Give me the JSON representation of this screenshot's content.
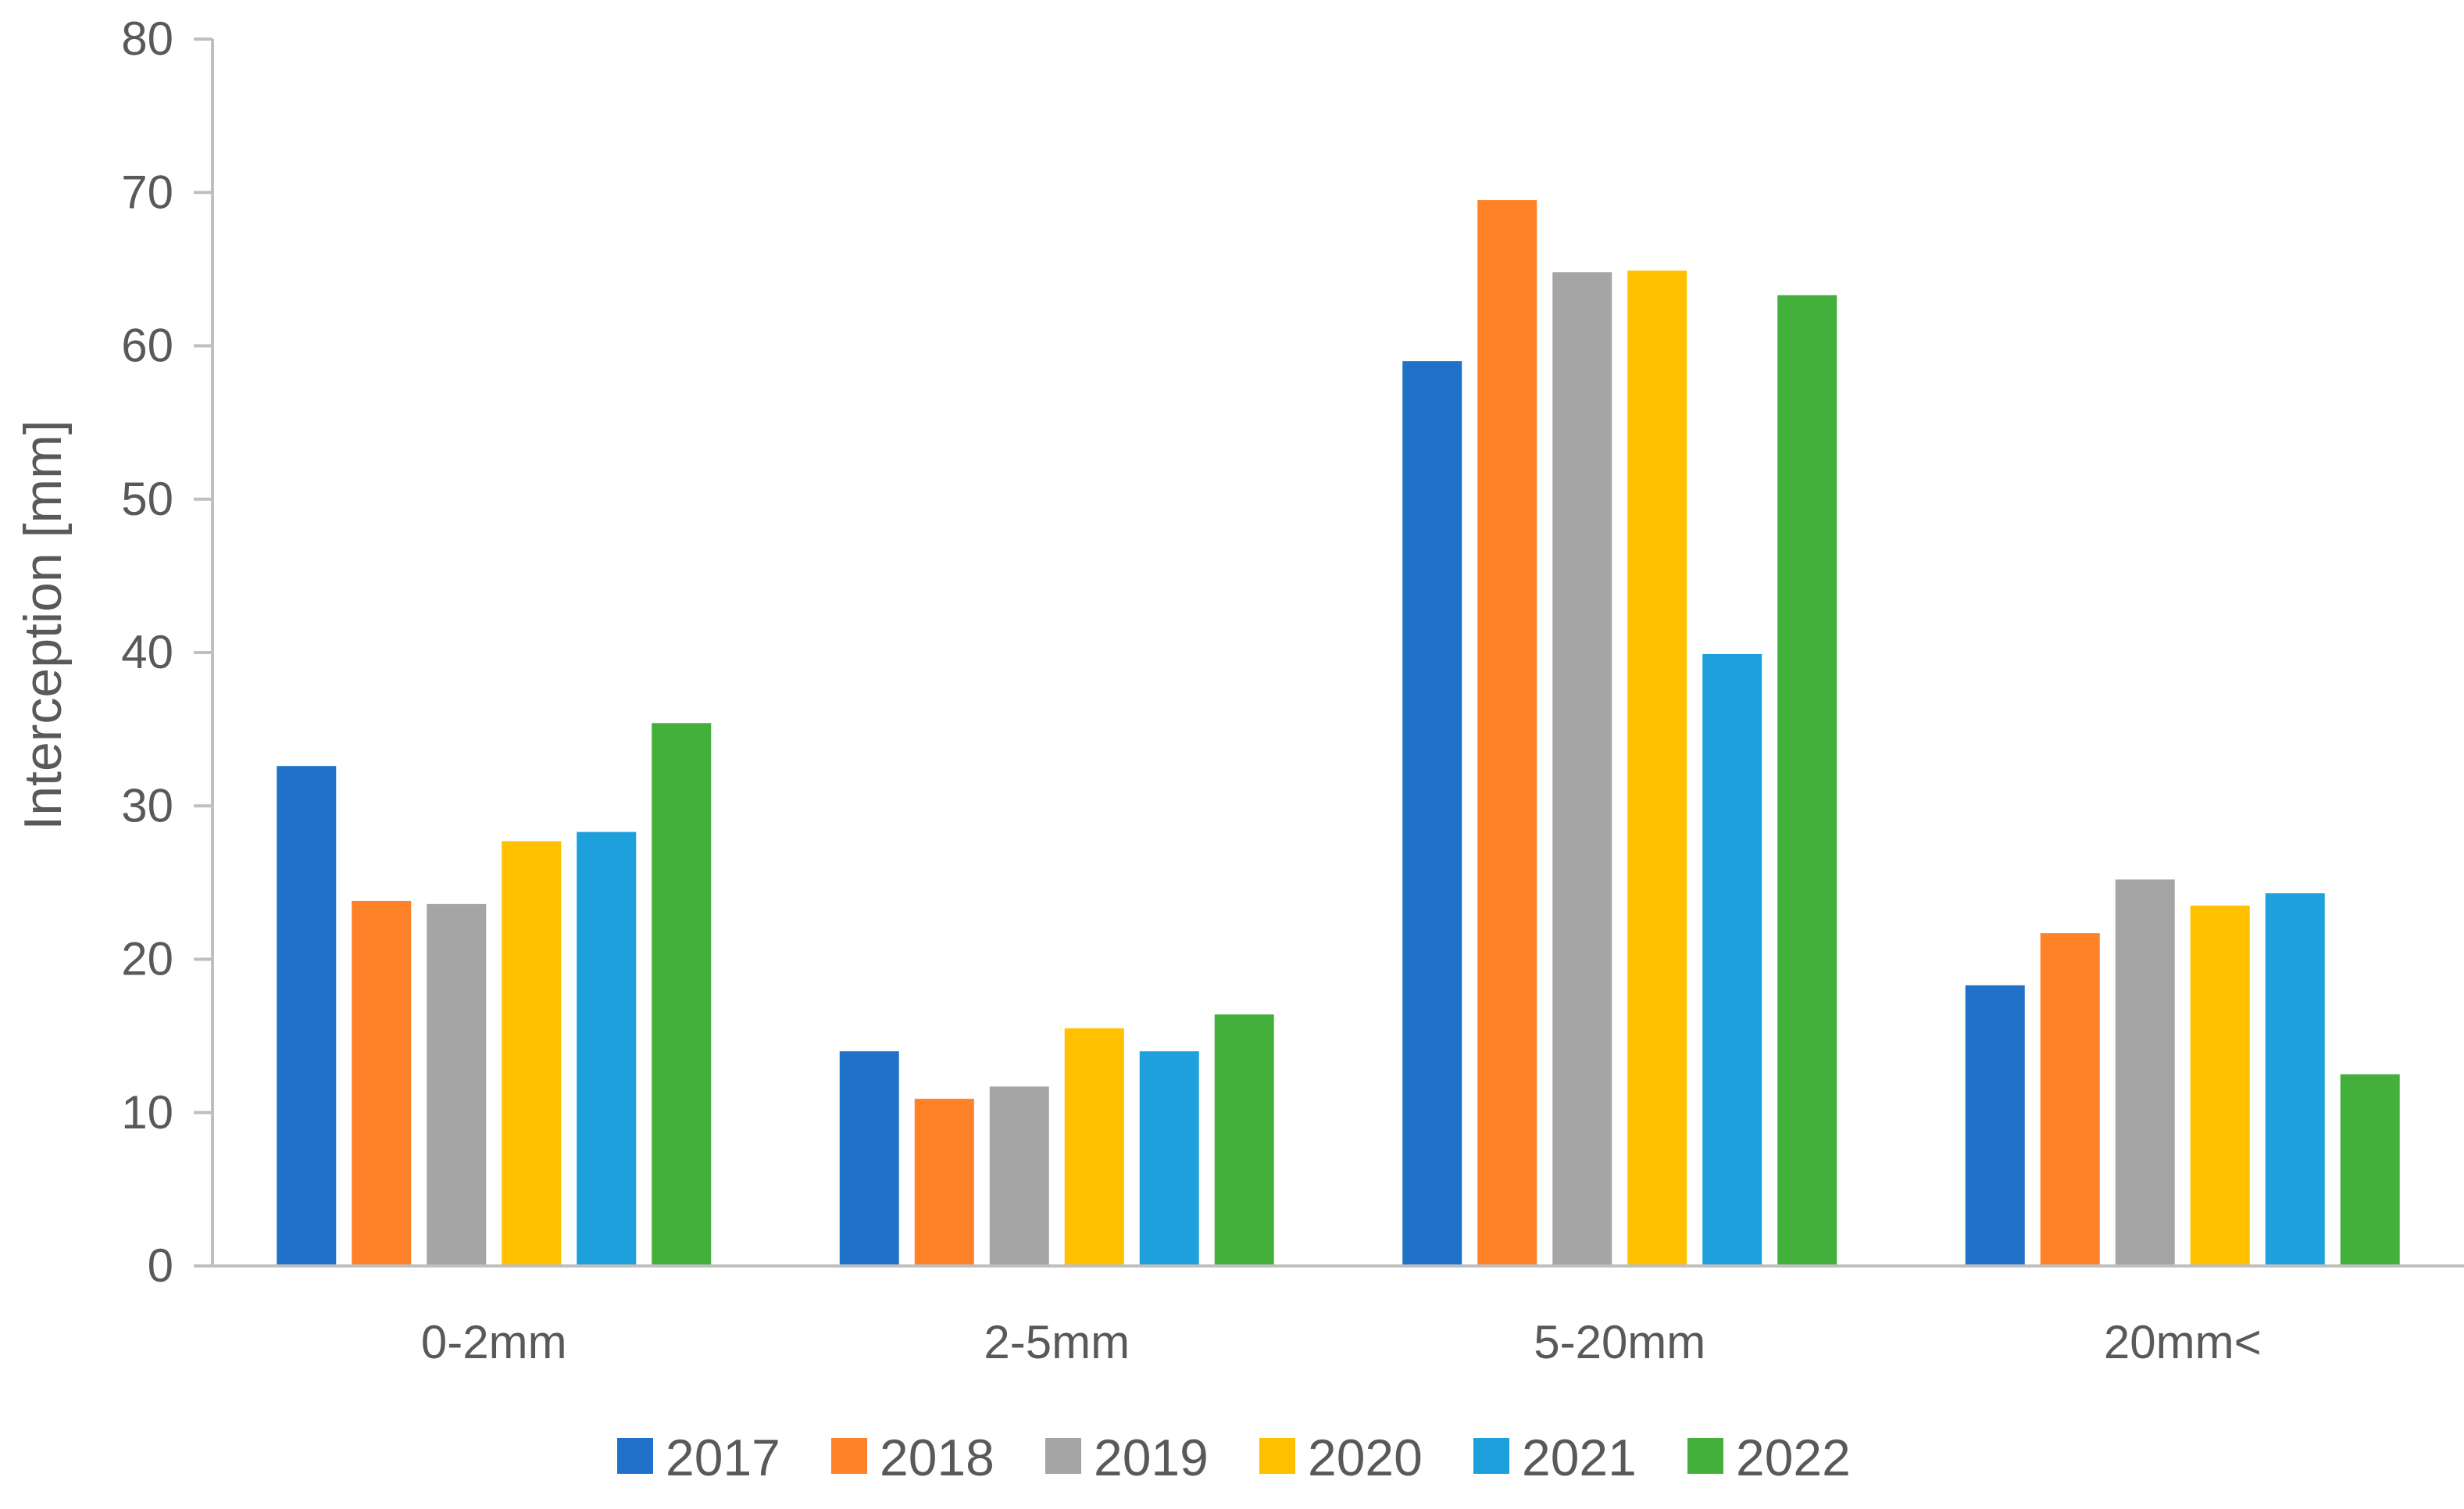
{
  "chart_data": {
    "type": "bar",
    "title": "",
    "xlabel": "",
    "ylabel": "Interception [mm]",
    "ylim": [
      0,
      80
    ],
    "yticks": [
      0,
      10,
      20,
      30,
      40,
      50,
      60,
      70,
      80
    ],
    "grid": false,
    "legend_position": "bottom",
    "categories": [
      "0-2mm",
      "2-5mm",
      "5-20mm",
      "20mm<"
    ],
    "series": [
      {
        "name": "2017",
        "color": "#1F72C8",
        "values": [
          32.6,
          14.0,
          59.0,
          18.3
        ]
      },
      {
        "name": "2018",
        "color": "#FF8128",
        "values": [
          23.8,
          10.9,
          69.5,
          21.7
        ]
      },
      {
        "name": "2019",
        "color": "#A5A5A5",
        "values": [
          23.6,
          11.7,
          64.8,
          25.2
        ]
      },
      {
        "name": "2020",
        "color": "#FFC000",
        "values": [
          27.7,
          15.5,
          64.9,
          23.5
        ]
      },
      {
        "name": "2021",
        "color": "#1EA0DC",
        "values": [
          28.3,
          14.0,
          39.9,
          24.3
        ]
      },
      {
        "name": "2022",
        "color": "#44B03C",
        "values": [
          35.4,
          16.4,
          63.3,
          12.5
        ]
      }
    ]
  }
}
